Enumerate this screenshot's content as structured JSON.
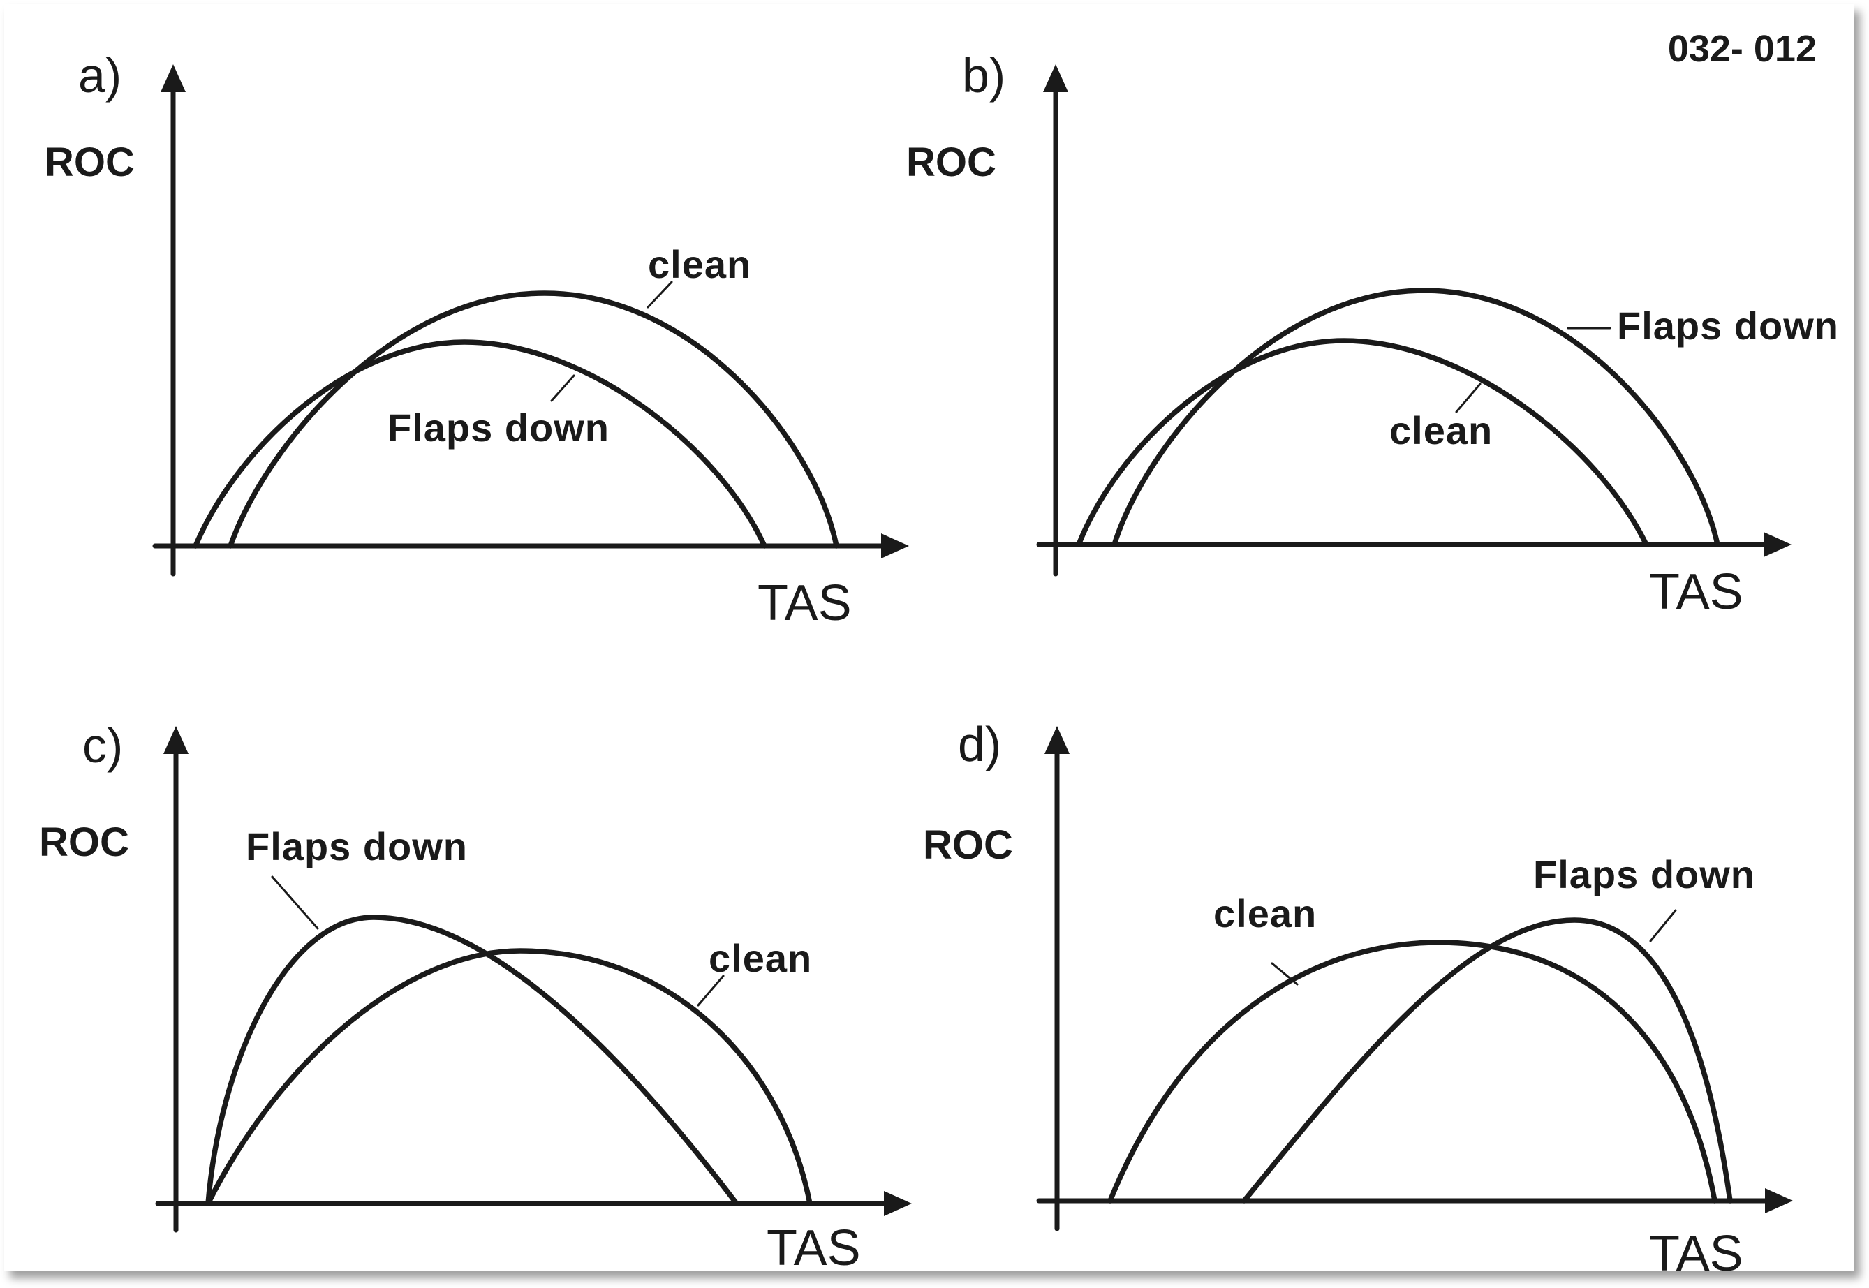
{
  "figure_id": "032- 012",
  "panels": [
    {
      "label": "a)",
      "y_axis": "ROC",
      "x_axis": "TAS",
      "curves": [
        {
          "label": "clean"
        },
        {
          "label": "Flaps down"
        }
      ]
    },
    {
      "label": "b)",
      "y_axis": "ROC",
      "x_axis": "TAS",
      "curves": [
        {
          "label": "Flaps down"
        },
        {
          "label": "clean"
        }
      ]
    },
    {
      "label": "c)",
      "y_axis": "ROC",
      "x_axis": "TAS",
      "curves": [
        {
          "label": "Flaps down"
        },
        {
          "label": "clean"
        }
      ]
    },
    {
      "label": "d)",
      "y_axis": "ROC",
      "x_axis": "TAS",
      "curves": [
        {
          "label": "clean"
        },
        {
          "label": "Flaps down"
        }
      ]
    }
  ]
}
